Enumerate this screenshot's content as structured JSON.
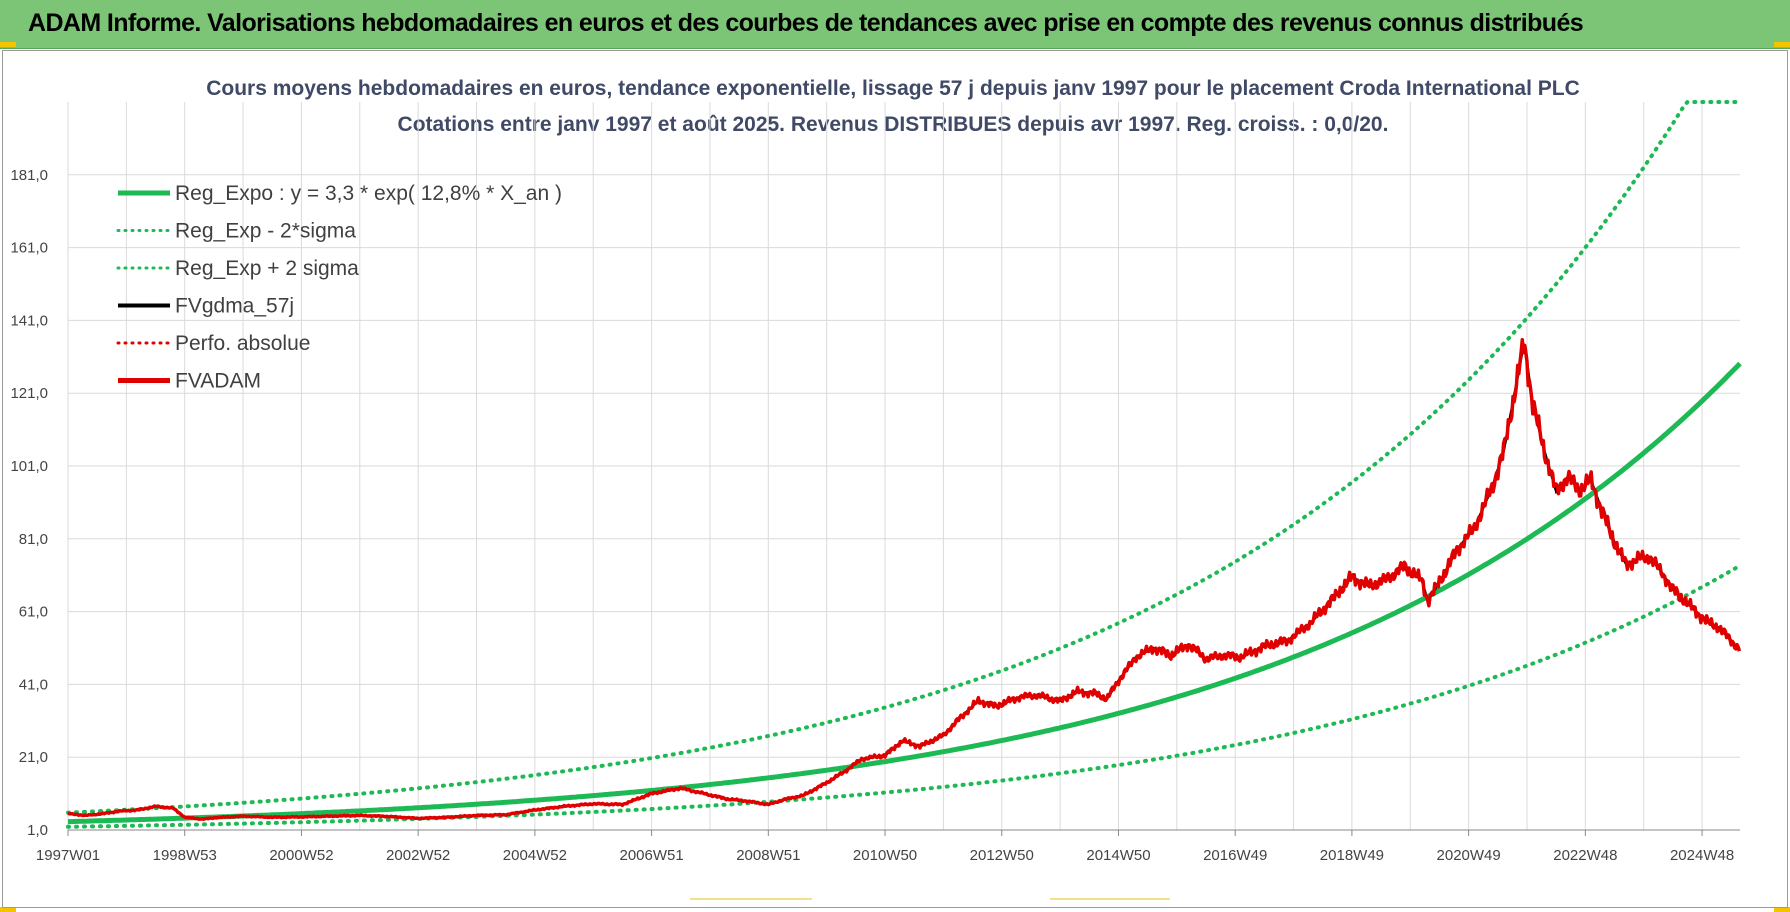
{
  "header": {
    "title": "ADAM Informe. Valorisations hebdomadaires en euros et des courbes de tendances avec prise en compte des revenus connus distribués"
  },
  "chart_data": {
    "type": "line",
    "title_line1": "Cours moyens hebdomadaires en euros, tendance exponentielle, lissage 57 j depuis janv 1997 pour le placement Croda International PLC",
    "title_line2": "Cotations entre janv 1997 et août 2025. Revenus DISTRIBUES depuis avr 1997. Reg. croiss. : 0,0/20.",
    "xlabel": "",
    "ylabel": "",
    "x_range": [
      1997.0,
      2025.65
    ],
    "ylim": [
      1.0,
      201.0
    ],
    "y_ticks": [
      1.0,
      21.0,
      41.0,
      61.0,
      81.0,
      101.0,
      121.0,
      141.0,
      161.0,
      181.0
    ],
    "y_tick_labels": [
      "1,0",
      "21,0",
      "41,0",
      "61,0",
      "81,0",
      "101,0",
      "121,0",
      "141,0",
      "161,0",
      "181,0"
    ],
    "x_tick_labels": [
      "1997W01",
      "1998W53",
      "2000W52",
      "2002W52",
      "2004W52",
      "2006W51",
      "2008W51",
      "2010W50",
      "2012W50",
      "2014W50",
      "2016W49",
      "2018W49",
      "2020W49",
      "2022W48",
      "2024W48"
    ],
    "x_tick_years": [
      1997.0,
      1999.0,
      2001.0,
      2003.0,
      2005.0,
      2007.0,
      2009.0,
      2011.0,
      2013.0,
      2015.0,
      2017.0,
      2019.0,
      2021.0,
      2023.0,
      2025.0
    ],
    "grid": true,
    "legend_position": "top-left",
    "regression": {
      "a": 3.3,
      "rate": 0.128,
      "sigma_factor_upper": 1.75,
      "sigma_factor_lower": 0.57
    },
    "series": [
      {
        "name": "Reg_Expo : y = 3,3 * exp( 12,8% *  X_an )",
        "color": "#1db954",
        "style": "solid"
      },
      {
        "name": "Reg_Exp - 2*sigma",
        "color": "#1db954",
        "style": "dotted"
      },
      {
        "name": "Reg_Exp + 2 sigma",
        "color": "#1db954",
        "style": "dotted"
      },
      {
        "name": "FVgdma_57j",
        "color": "#000000",
        "style": "solid"
      },
      {
        "name": "Perfo. absolue",
        "color": "#e00000",
        "style": "dotted"
      },
      {
        "name": "FVADAM",
        "color": "#e00000",
        "style": "solid",
        "points": [
          [
            1997.0,
            5.5
          ],
          [
            1997.3,
            5.0
          ],
          [
            1997.6,
            5.5
          ],
          [
            1997.9,
            6.2
          ],
          [
            1998.2,
            6.5
          ],
          [
            1998.5,
            7.5
          ],
          [
            1998.8,
            7.0
          ],
          [
            1999.0,
            4.5
          ],
          [
            1999.3,
            4.0
          ],
          [
            1999.6,
            4.5
          ],
          [
            2000.0,
            4.8
          ],
          [
            2000.5,
            4.5
          ],
          [
            2001.0,
            4.6
          ],
          [
            2001.5,
            4.8
          ],
          [
            2002.0,
            5.0
          ],
          [
            2002.5,
            4.7
          ],
          [
            2003.0,
            4.2
          ],
          [
            2003.5,
            4.5
          ],
          [
            2004.0,
            5.0
          ],
          [
            2004.5,
            5.2
          ],
          [
            2005.0,
            6.5
          ],
          [
            2005.5,
            7.5
          ],
          [
            2006.0,
            8.2
          ],
          [
            2006.5,
            8.0
          ],
          [
            2007.0,
            11.0
          ],
          [
            2007.5,
            12.5
          ],
          [
            2007.9,
            11.0
          ],
          [
            2008.3,
            9.5
          ],
          [
            2008.6,
            9.0
          ],
          [
            2009.0,
            8.0
          ],
          [
            2009.3,
            9.5
          ],
          [
            2009.6,
            10.5
          ],
          [
            2010.0,
            14.0
          ],
          [
            2010.3,
            17.0
          ],
          [
            2010.6,
            20.5
          ],
          [
            2011.0,
            21.5
          ],
          [
            2011.3,
            25.5
          ],
          [
            2011.6,
            24.0
          ],
          [
            2012.0,
            27.0
          ],
          [
            2012.3,
            32.0
          ],
          [
            2012.6,
            36.5
          ],
          [
            2012.9,
            35.0
          ],
          [
            2013.3,
            37.5
          ],
          [
            2013.6,
            38.0
          ],
          [
            2014.0,
            36.5
          ],
          [
            2014.3,
            39.0
          ],
          [
            2014.6,
            38.5
          ],
          [
            2014.8,
            37.0
          ],
          [
            2015.0,
            42.0
          ],
          [
            2015.3,
            48.5
          ],
          [
            2015.6,
            51.0
          ],
          [
            2015.9,
            49.0
          ],
          [
            2016.2,
            52.0
          ],
          [
            2016.5,
            48.0
          ],
          [
            2016.8,
            49.0
          ],
          [
            2017.1,
            48.5
          ],
          [
            2017.5,
            51.5
          ],
          [
            2017.9,
            53.0
          ],
          [
            2018.3,
            58.0
          ],
          [
            2018.7,
            65.0
          ],
          [
            2019.0,
            70.5
          ],
          [
            2019.3,
            68.0
          ],
          [
            2019.6,
            70.0
          ],
          [
            2019.9,
            73.5
          ],
          [
            2020.2,
            69.5
          ],
          [
            2020.3,
            64.0
          ],
          [
            2020.5,
            69.0
          ],
          [
            2020.8,
            78.0
          ],
          [
            2021.1,
            84.0
          ],
          [
            2021.4,
            95.0
          ],
          [
            2021.6,
            105.0
          ],
          [
            2021.8,
            122.0
          ],
          [
            2021.95,
            135.0
          ],
          [
            2022.1,
            118.0
          ],
          [
            2022.3,
            105.0
          ],
          [
            2022.5,
            94.0
          ],
          [
            2022.7,
            98.0
          ],
          [
            2022.9,
            94.5
          ],
          [
            2023.1,
            97.0
          ],
          [
            2023.3,
            88.0
          ],
          [
            2023.5,
            80.0
          ],
          [
            2023.7,
            74.0
          ],
          [
            2023.9,
            75.5
          ],
          [
            2024.1,
            76.0
          ],
          [
            2024.3,
            72.0
          ],
          [
            2024.5,
            67.0
          ],
          [
            2024.7,
            64.0
          ],
          [
            2024.9,
            61.0
          ],
          [
            2025.1,
            58.0
          ],
          [
            2025.3,
            56.5
          ],
          [
            2025.5,
            53.0
          ],
          [
            2025.65,
            50.5
          ]
        ]
      }
    ]
  }
}
